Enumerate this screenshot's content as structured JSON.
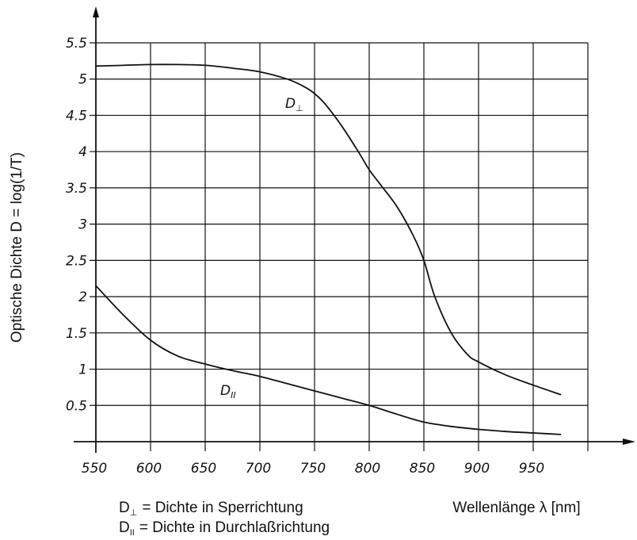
{
  "chart_data": {
    "type": "line",
    "ylabel": "Optische Dichte  D = log(1/T)",
    "xlabel": "Wellenlänge λ [nm]",
    "x_ticks": [
      "550",
      "600",
      "650",
      "700",
      "750",
      "800",
      "850",
      "900",
      "950"
    ],
    "y_ticks": [
      "0.5",
      "1",
      "1.5",
      "2",
      "2.5",
      "3",
      "3.5",
      "4",
      "4.5",
      "5",
      "5.5"
    ],
    "xlim": [
      550,
      1000
    ],
    "ylim": [
      0,
      5.5
    ],
    "grid": true,
    "series": [
      {
        "name": "D⊥",
        "x": [
          550,
          575,
          600,
          625,
          650,
          675,
          700,
          725,
          740,
          750,
          760,
          775,
          790,
          800,
          810,
          825,
          840,
          850,
          860,
          875,
          890,
          900,
          925,
          950,
          975
        ],
        "y": [
          5.18,
          5.19,
          5.2,
          5.2,
          5.19,
          5.15,
          5.1,
          5.0,
          4.9,
          4.8,
          4.65,
          4.35,
          4.0,
          3.75,
          3.55,
          3.25,
          2.85,
          2.5,
          2.0,
          1.5,
          1.2,
          1.1,
          0.92,
          0.78,
          0.65
        ]
      },
      {
        "name": "D∥",
        "x": [
          550,
          575,
          600,
          625,
          650,
          675,
          700,
          725,
          750,
          775,
          800,
          825,
          850,
          875,
          900,
          925,
          950,
          975
        ],
        "y": [
          2.15,
          1.75,
          1.4,
          1.18,
          1.07,
          0.98,
          0.9,
          0.8,
          0.7,
          0.6,
          0.5,
          0.38,
          0.27,
          0.21,
          0.17,
          0.14,
          0.12,
          0.1
        ]
      }
    ],
    "curve_labels": [
      {
        "main": "D",
        "sub": "⊥"
      },
      {
        "main": "D",
        "sub": "II"
      }
    ],
    "legend": [
      {
        "symbol_main": "D",
        "symbol_sub": "⊥",
        "text": "= Dichte in Sperrichtung"
      },
      {
        "symbol_main": "D",
        "symbol_sub": "II",
        "text": "= Dichte in Durchlaßrichtung"
      }
    ]
  }
}
